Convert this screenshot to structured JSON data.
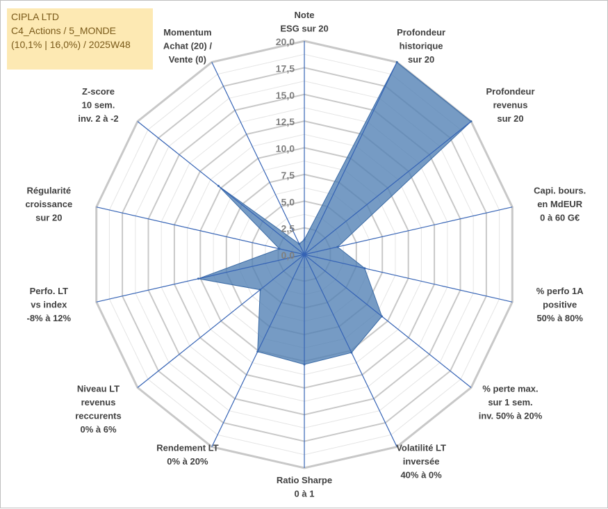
{
  "title": {
    "line1": "CIPLA LTD",
    "line2": "C4_Actions / 5_MONDE",
    "line3": "(10,1% | 16,0%) / 2025W48"
  },
  "chart_data": {
    "type": "radar",
    "rmax": 20,
    "ticks": [
      "0,0",
      "2,5",
      "5,0",
      "7,5",
      "10,0",
      "12,5",
      "15,0",
      "17,5",
      "20,0"
    ],
    "tick_values": [
      0,
      2.5,
      5,
      7.5,
      10,
      12.5,
      15,
      17.5,
      20
    ],
    "grid_rings_per_tick": 2,
    "colors": {
      "fill": "#4f7fb4",
      "stroke": "#3a6aa5",
      "grid": "#c8c8c8",
      "grid_minor": "#e4e4e4",
      "spoke": "#3563b5"
    },
    "axes": [
      {
        "lines": [
          "Note",
          "ESG sur 20"
        ],
        "value": 1.4
      },
      {
        "lines": [
          "Profondeur",
          "historique",
          "sur 20"
        ],
        "value": 20
      },
      {
        "lines": [
          "Profondeur",
          "revenus",
          "sur 20"
        ],
        "value": 20
      },
      {
        "lines": [
          "Capi. bours.",
          "en MdEUR",
          "0 à 60 G€"
        ],
        "value": 3.2
      },
      {
        "lines": [
          "% perfo 1A",
          "positive",
          "50% à 80%"
        ],
        "value": 5.8
      },
      {
        "lines": [
          "% perte max.",
          "sur 1 sem.",
          "inv. 50% à 20%"
        ],
        "value": 9.3
      },
      {
        "lines": [
          "Volatilité LT",
          "inversée",
          "40% à 0%"
        ],
        "value": 10.2
      },
      {
        "lines": [
          "Ratio Sharpe",
          "0 à 1"
        ],
        "value": 10.3
      },
      {
        "lines": [
          "Rendement LT",
          "0% à 20%"
        ],
        "value": 10.1
      },
      {
        "lines": [
          "Niveau LT",
          "revenus",
          "reccurents",
          "0% à 6%"
        ],
        "value": 5.3
      },
      {
        "lines": [
          "Perfo. LT",
          "vs index",
          "-8% à 12%"
        ],
        "value": 10.2
      },
      {
        "lines": [
          "Régularité",
          "croissance",
          "sur 20"
        ],
        "value": 2.4
      },
      {
        "lines": [
          "Z-score",
          "10 sem.",
          "inv. 2 à -2"
        ],
        "value": 10.3
      },
      {
        "lines": [
          "Momentum",
          "Achat (20) /",
          "Vente (0)"
        ],
        "value": 1.1
      }
    ]
  }
}
